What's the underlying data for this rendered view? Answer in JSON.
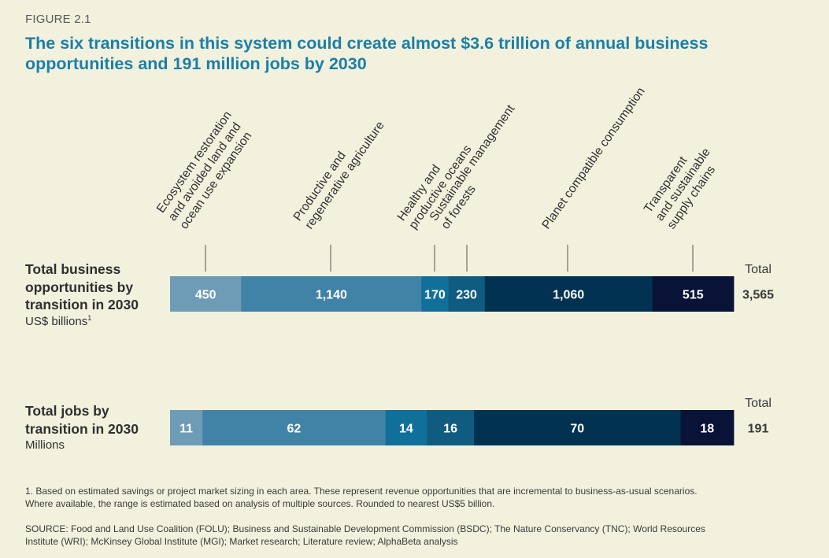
{
  "figure_label": "FIGURE 2.1",
  "title": "The six transitions in this system could create almost $3.6 trillion of annual business opportunities and 191 million jobs by 2030",
  "rows": {
    "business": {
      "label_lines": [
        "Total business",
        "opportunities by",
        "transition in 2030"
      ],
      "unit": "US$ billions",
      "unit_note": "1"
    },
    "jobs": {
      "label_lines": [
        "Total jobs by",
        "transition in 2030"
      ],
      "unit": "Millions"
    }
  },
  "total_label": "Total",
  "footnote_lines": [
    "1. Based on estimated savings or project market sizing in each area. These represent revenue opportunities that are incremental to business-as-usual scenarios.",
    "Where available, the range is estimated based on analysis of multiple sources. Rounded to nearest US$5 billion."
  ],
  "source_lines": [
    "SOURCE: Food and Land Use Coalition (FOLU); Business and Sustainable Development Commission (BSDC); The Nature Conservancy (TNC); World Resources",
    "Institute (WRI); McKinsey Global Institute (MGI); Market research; Literature review; AlphaBeta analysis"
  ],
  "chart_data": {
    "type": "bar",
    "orientation": "horizontal-stacked",
    "categories": [
      [
        "Ecosystem restoration",
        "and avoided land and",
        "ocean use expansion"
      ],
      [
        "Productive and",
        "regenerative agriculture"
      ],
      [
        "Healthy and",
        "productive oceans"
      ],
      [
        "Sustainable management",
        "of forests"
      ],
      [
        "Planet compatible consumption"
      ],
      [
        "Transparent",
        "and sustainable",
        "supply chains"
      ]
    ],
    "series": [
      {
        "name": "Total business opportunities by transition in 2030",
        "values": [
          450,
          1140,
          170,
          230,
          1060,
          515
        ],
        "labels": [
          "450",
          "1,140",
          "170",
          "230",
          "1,060",
          "515"
        ],
        "total": 3565,
        "total_label": "3,565"
      },
      {
        "name": "Total jobs by transition in 2030",
        "values": [
          11,
          62,
          14,
          16,
          70,
          18
        ],
        "labels": [
          "11",
          "62",
          "14",
          "16",
          "70",
          "18"
        ],
        "total": 191,
        "total_label": "191"
      }
    ],
    "colors": [
      "#6e9bb6",
      "#4183a6",
      "#11709a",
      "#0f5c80",
      "#023251",
      "#091338"
    ],
    "label_color": "#ffffff"
  }
}
